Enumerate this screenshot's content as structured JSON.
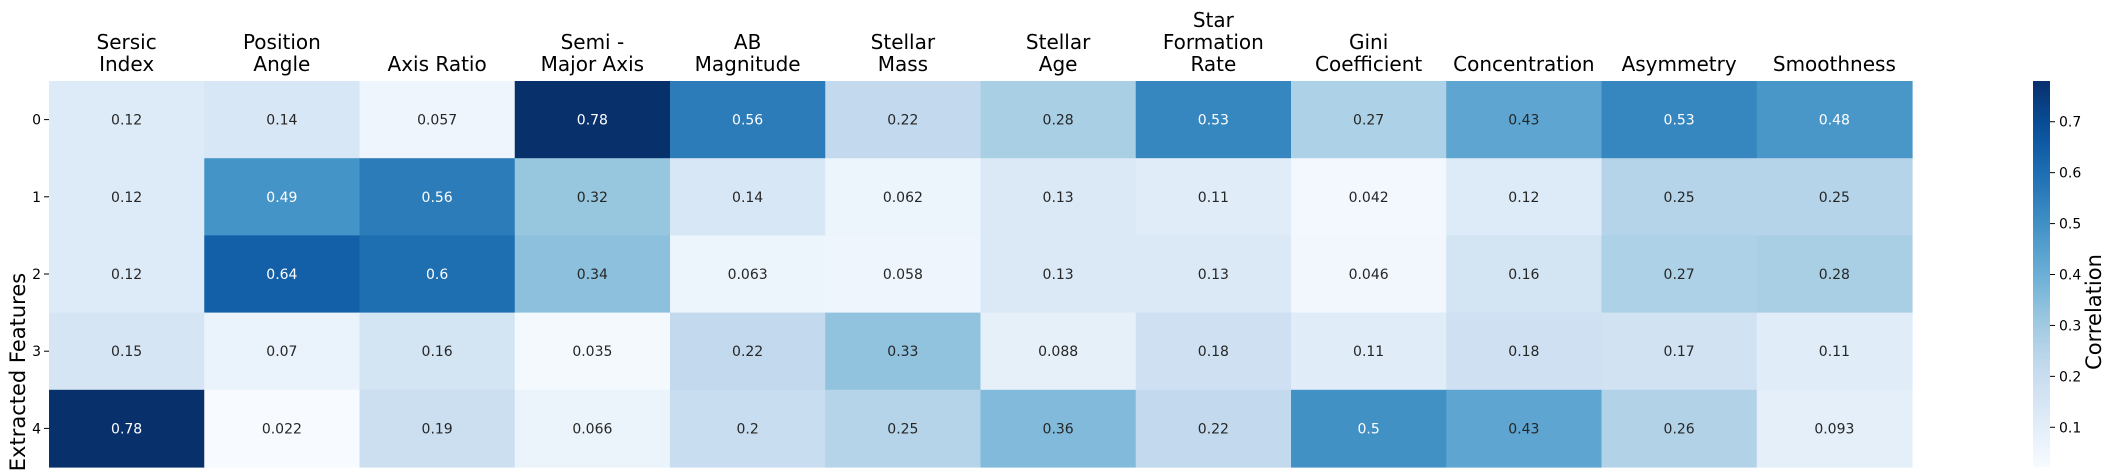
{
  "chart_data": {
    "type": "heatmap",
    "title": "",
    "xlabel": "",
    "ylabel": "Extracted Features",
    "columns": [
      [
        "Sersic",
        "Index"
      ],
      [
        "Position",
        "Angle"
      ],
      [
        "Axis Ratio"
      ],
      [
        "Semi -",
        "Major Axis"
      ],
      [
        "AB",
        "Magnitude"
      ],
      [
        "Stellar",
        "Mass"
      ],
      [
        "Stellar",
        "Age"
      ],
      [
        "Star",
        "Formation",
        "Rate"
      ],
      [
        "Gini",
        "Coefficient"
      ],
      [
        "Concentration"
      ],
      [
        "Asymmetry"
      ],
      [
        "Smoothness"
      ]
    ],
    "rows": [
      "0",
      "1",
      "2",
      "3",
      "4"
    ],
    "values": [
      [
        "0.12",
        "0.14",
        "0.057",
        "0.78",
        "0.56",
        "0.22",
        "0.28",
        "0.53",
        "0.27",
        "0.43",
        "0.53",
        "0.48"
      ],
      [
        "0.12",
        "0.49",
        "0.56",
        "0.32",
        "0.14",
        "0.062",
        "0.13",
        "0.11",
        "0.042",
        "0.12",
        "0.25",
        "0.25"
      ],
      [
        "0.12",
        "0.64",
        "0.6",
        "0.34",
        "0.063",
        "0.058",
        "0.13",
        "0.13",
        "0.046",
        "0.16",
        "0.27",
        "0.28"
      ],
      [
        "0.15",
        "0.07",
        "0.16",
        "0.035",
        "0.22",
        "0.33",
        "0.088",
        "0.18",
        "0.11",
        "0.18",
        "0.17",
        "0.11"
      ],
      [
        "0.78",
        "0.022",
        "0.19",
        "0.066",
        "0.2",
        "0.25",
        "0.36",
        "0.22",
        "0.5",
        "0.43",
        "0.26",
        "0.093"
      ]
    ],
    "colorbar": {
      "label": "Correlation",
      "ticks": [
        "0.1",
        "0.2",
        "0.3",
        "0.4",
        "0.5",
        "0.6",
        "0.7"
      ],
      "range": [
        0.022,
        0.78
      ],
      "colormap": "Blues"
    },
    "grid": false,
    "legend": "colorbar-right"
  }
}
